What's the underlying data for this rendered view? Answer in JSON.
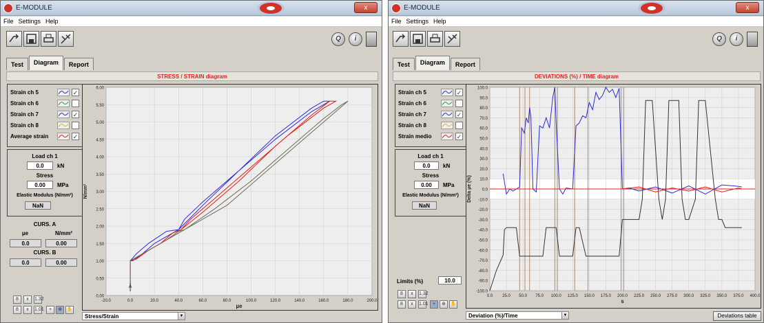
{
  "left": {
    "title": "E-MODULE",
    "close": "x",
    "menu": [
      "File",
      "Settings",
      "Help"
    ],
    "tabs": [
      "Test",
      "Diagram",
      "Report"
    ],
    "active_tab": 1,
    "diagram_title": "STRESS / STRAIN diagram",
    "legend": [
      {
        "label": "Strain ch 5",
        "checked": true,
        "color": "#2b2bd6"
      },
      {
        "label": "Strain ch 6",
        "checked": false,
        "color": "#1ea62a"
      },
      {
        "label": "Strain ch 7",
        "checked": true,
        "color": "#2b2bd6"
      },
      {
        "label": "Strain ch 8",
        "checked": false,
        "color": "#e0b020"
      },
      {
        "label": "Average strain",
        "checked": true,
        "color": "#e0201a"
      }
    ],
    "load_label": "Load ch 1",
    "load_value": "0.0",
    "load_unit": "kN",
    "stress_label": "Stress",
    "stress_value": "0.00",
    "stress_unit": "MPa",
    "modulus_label": "Elastic Modulus (N/mm²)",
    "modulus_value": "NaN",
    "curs_a_label": "CURS. A",
    "curs_a_col1": "µe",
    "curs_a_col2": "N/mm²",
    "curs_a_v1": "0.0",
    "curs_a_v2": "0.00",
    "curs_b_label": "CURS. B",
    "curs_b_v1": "0.0",
    "curs_b_v2": "0.00",
    "plot_mode": "Stress/Strain"
  },
  "right": {
    "title": "E-MODULE",
    "close": "x",
    "menu": [
      "File",
      "Settings",
      "Help"
    ],
    "tabs": [
      "Test",
      "Diagram",
      "Report"
    ],
    "active_tab": 1,
    "diagram_title": "DEVIATIONS (%) / TIME diagram",
    "legend": [
      {
        "label": "Strain ch 5",
        "checked": true,
        "color": "#2b2bd6"
      },
      {
        "label": "Strain ch 6",
        "checked": false,
        "color": "#1ea62a"
      },
      {
        "label": "Strain ch 7",
        "checked": true,
        "color": "#2b2bd6"
      },
      {
        "label": "Strain ch 8",
        "checked": false,
        "color": "#e0b020"
      },
      {
        "label": "Strain medio",
        "checked": true,
        "color": "#e0201a"
      }
    ],
    "load_label": "Load ch 1",
    "load_value": "0.0",
    "load_unit": "kN",
    "stress_label": "Stress",
    "stress_value": "0.00",
    "stress_unit": "MPa",
    "modulus_label": "Elastic Modulus (N/mm²)",
    "modulus_value": "NaN",
    "limits_label": "Limits (%)",
    "limits_value": "10.0",
    "plot_mode": "Deviation (%)/Time",
    "deviations_table": "Deviations table"
  },
  "small_button_labels": [
    "x",
    "1.32",
    "1.01"
  ],
  "chart_data": [
    {
      "type": "line",
      "title": "STRESS / STRAIN diagram",
      "xlabel": "µe",
      "ylabel": "N/mm²",
      "xlim": [
        -20,
        200
      ],
      "ylim": [
        0,
        6
      ],
      "x_ticks": [
        "-20.0",
        "0.0",
        "20.0",
        "40.0",
        "60.0",
        "80.0",
        "100.0",
        "120.0",
        "140.0",
        "160.0",
        "180.0",
        "200.0"
      ],
      "y_ticks": [
        "0.00",
        "0.50",
        "1.00",
        "1.50",
        "2.00",
        "2.50",
        "3.00",
        "3.50",
        "4.00",
        "4.50",
        "5.00",
        "5.50",
        "6.00"
      ],
      "grid": true,
      "series": [
        {
          "color": "#2b2bd6",
          "x": [
            0,
            0,
            5,
            15,
            30,
            40,
            60,
            90,
            120,
            150,
            160,
            165,
            150,
            120,
            90,
            60,
            45,
            40,
            30,
            20,
            10,
            2,
            0
          ],
          "y": [
            0.3,
            1.0,
            1.2,
            1.5,
            1.85,
            1.9,
            2.6,
            3.6,
            4.6,
            5.4,
            5.6,
            5.6,
            5.3,
            4.5,
            3.6,
            2.7,
            2.2,
            1.9,
            1.7,
            1.5,
            1.2,
            1.0,
            1.0
          ]
        },
        {
          "color": "#e0201a",
          "x": [
            0,
            0,
            10,
            25,
            35,
            42,
            60,
            90,
            120,
            150,
            165,
            170,
            160,
            130,
            100,
            70,
            50,
            42,
            30,
            15,
            5,
            0
          ],
          "y": [
            0.3,
            1.0,
            1.2,
            1.5,
            1.8,
            1.9,
            2.4,
            3.3,
            4.3,
            5.2,
            5.6,
            5.6,
            5.4,
            4.6,
            3.7,
            2.8,
            2.2,
            1.9,
            1.6,
            1.3,
            1.05,
            1.0
          ]
        },
        {
          "color": "#6e6a55",
          "x": [
            0,
            0,
            15,
            30,
            40,
            45,
            70,
            100,
            130,
            160,
            175,
            180,
            170,
            140,
            110,
            80,
            55,
            45,
            30,
            15,
            0
          ],
          "y": [
            0.3,
            1.0,
            1.3,
            1.6,
            1.85,
            1.9,
            2.5,
            3.3,
            4.2,
            5.1,
            5.5,
            5.6,
            5.3,
            4.4,
            3.5,
            2.6,
            2.1,
            1.9,
            1.6,
            1.3,
            1.0
          ]
        }
      ],
      "cursor_x": 0,
      "cursor_y": 0.2
    },
    {
      "type": "line",
      "title": "DEVIATIONS (%) / TIME diagram",
      "xlabel": "s",
      "ylabel": "Delta µe (%)",
      "xlim": [
        0,
        400
      ],
      "ylim": [
        -100,
        100
      ],
      "x_ticks": [
        "0.0",
        "25.0",
        "50.0",
        "75.0",
        "100.0",
        "125.0",
        "150.0",
        "175.0",
        "200.0",
        "225.0",
        "250.0",
        "275.0",
        "300.0",
        "325.0",
        "350.0",
        "375.0",
        "400.0"
      ],
      "y_ticks": [
        "-100.0",
        "-90.0",
        "-80.0",
        "-70.0",
        "-60.0",
        "-50.0",
        "-40.0",
        "-30.0",
        "-20.0",
        "-10.0",
        "0.0",
        "10.0",
        "20.0",
        "30.0",
        "40.0",
        "50.0",
        "60.0",
        "70.0",
        "80.0",
        "90.0",
        "100.0"
      ],
      "limit_band": [
        -10,
        10
      ],
      "grid": true,
      "series": [
        {
          "name": "load",
          "color": "#333333",
          "x": [
            0,
            10,
            20,
            22,
            25,
            40,
            45,
            50,
            55,
            70,
            80,
            85,
            100,
            105,
            110,
            125,
            130,
            135,
            145,
            150,
            195,
            200,
            205,
            225,
            230,
            235,
            240,
            245,
            255,
            260,
            265,
            270,
            285,
            290,
            295,
            300,
            310,
            315,
            320,
            325,
            340,
            345,
            350,
            355,
            365,
            370,
            380
          ],
          "y": [
            -100,
            -80,
            -65,
            -40,
            -38,
            -38,
            -66,
            -66,
            -66,
            -66,
            -66,
            -38,
            -38,
            -66,
            -66,
            -66,
            -38,
            -38,
            -66,
            -66,
            -66,
            -30,
            -30,
            -30,
            -10,
            87,
            87,
            87,
            -10,
            -30,
            -10,
            87,
            87,
            -10,
            -30,
            -30,
            -10,
            87,
            87,
            87,
            -10,
            -30,
            -30,
            -38,
            -38,
            -38,
            -38
          ]
        },
        {
          "name": "strain-blue",
          "color": "#2b2bd6",
          "x": [
            20,
            25,
            30,
            35,
            40,
            45,
            48,
            52,
            55,
            58,
            60,
            62,
            65,
            70,
            75,
            80,
            85,
            90,
            95,
            98,
            100,
            105,
            110,
            115,
            125,
            130,
            135,
            140,
            145,
            150,
            155,
            160,
            165,
            170,
            175,
            180,
            185,
            190,
            195,
            200,
            210,
            225,
            250,
            275,
            300,
            325,
            350,
            370,
            380
          ],
          "y": [
            15,
            -5,
            0,
            -2,
            0,
            2,
            60,
            55,
            70,
            65,
            80,
            70,
            0,
            -3,
            62,
            60,
            70,
            60,
            90,
            100,
            65,
            0,
            -5,
            1,
            0,
            62,
            65,
            72,
            70,
            85,
            78,
            95,
            88,
            92,
            100,
            95,
            98,
            90,
            99,
            0,
            1,
            -2,
            2,
            -4,
            3,
            -5,
            4,
            3,
            2
          ]
        },
        {
          "name": "strain-red",
          "color": "#e0201a",
          "x": [
            20,
            100,
            200,
            225,
            250,
            275,
            300,
            325,
            350,
            375,
            380
          ],
          "y": [
            0,
            0,
            0,
            2,
            -3,
            1,
            -2,
            2,
            -3,
            1,
            0
          ]
        }
      ],
      "vertical_markers": [
        45,
        53,
        60,
        98,
        102,
        128,
        148,
        198,
        202
      ]
    }
  ]
}
